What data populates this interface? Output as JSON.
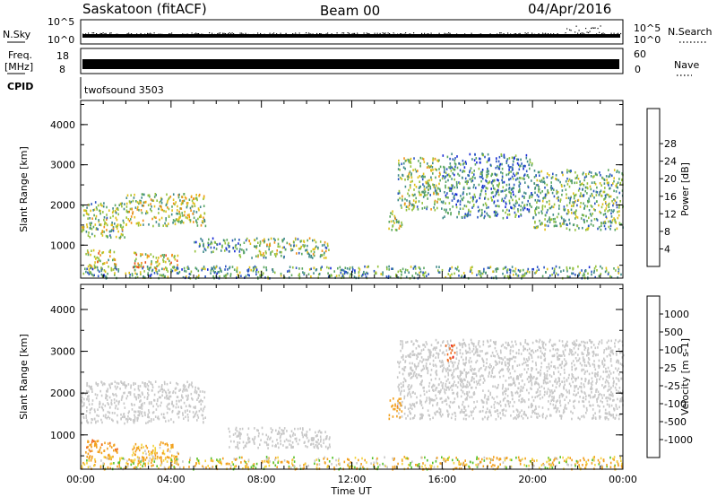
{
  "header": {
    "station": "Saskatoon (fitACF)",
    "beam": "Beam 00",
    "date": "04/Apr/2016"
  },
  "strip_panels": {
    "nsky_label": "N.Sky",
    "nsky_ticks_left": [
      "10^5",
      "10^0"
    ],
    "nsky_ticks_right": [
      "10^5",
      "10^0"
    ],
    "nsearch_label": "N.Search",
    "freq_label": "Freq.",
    "freq_unit": "[MHz]",
    "freq_ticks": [
      "18",
      "8"
    ],
    "nave_ticks": [
      "60",
      "0"
    ],
    "nave_label": "Nave",
    "cpid_label": "CPID",
    "cpid_value": "twofsound 3503"
  },
  "chart_data": [
    {
      "type": "heatmap",
      "panel": "power",
      "ylabel": "Slant Range [km]",
      "xlabel": "",
      "y_ticks": [
        "1000",
        "2000",
        "3000",
        "4000"
      ],
      "ylim": [
        180,
        4600
      ],
      "xlim_hours": [
        0,
        24
      ],
      "colorbar_label": "Power [dB]",
      "colorbar_ticks": [
        "4",
        "8",
        "12",
        "16",
        "20",
        "24",
        "28"
      ],
      "colorbar_colors": [
        "#1427d6",
        "#2a55c2",
        "#3f8a88",
        "#5aa65f",
        "#94c13c",
        "#e0c018",
        "#f28f14",
        "#e8501a",
        "#e0171a"
      ],
      "regions": [
        {
          "t0": 0.0,
          "t1": 2.0,
          "r0": 1200,
          "r1": 2100,
          "level": 0.45
        },
        {
          "t0": 2.0,
          "t1": 5.5,
          "r0": 1500,
          "r1": 2300,
          "level": 0.5
        },
        {
          "t0": 0.2,
          "t1": 1.6,
          "r0": 400,
          "r1": 900,
          "level": 0.55
        },
        {
          "t0": 2.2,
          "t1": 4.3,
          "r0": 400,
          "r1": 850,
          "level": 0.6
        },
        {
          "t0": 5.0,
          "t1": 7.0,
          "r0": 850,
          "r1": 1200,
          "level": 0.3
        },
        {
          "t0": 7.0,
          "t1": 11.0,
          "r0": 700,
          "r1": 1200,
          "level": 0.45
        },
        {
          "t0": 14.0,
          "t1": 16.0,
          "r0": 1900,
          "r1": 3200,
          "level": 0.45
        },
        {
          "t0": 13.6,
          "t1": 14.2,
          "r0": 1400,
          "r1": 1900,
          "level": 0.5
        },
        {
          "t0": 16.0,
          "t1": 20.0,
          "r0": 1700,
          "r1": 3300,
          "level": 0.3
        },
        {
          "t0": 20.0,
          "t1": 24.0,
          "r0": 1400,
          "r1": 2900,
          "level": 0.4
        },
        {
          "t0": 0.0,
          "t1": 24.0,
          "r0": 200,
          "r1": 500,
          "level": 0.35
        }
      ]
    },
    {
      "type": "heatmap",
      "panel": "velocity",
      "ylabel": "Slant Range [km]",
      "xlabel": "Time UT",
      "x_ticks": [
        "00:00",
        "04:00",
        "08:00",
        "12:00",
        "16:00",
        "20:00",
        "00:00"
      ],
      "y_ticks": [
        "1000",
        "2000",
        "3000",
        "4000"
      ],
      "ylim": [
        180,
        4600
      ],
      "xlim_hours": [
        0,
        24
      ],
      "colorbar_label": "Velocity [m s-1]",
      "colorbar_ticks": [
        "1000",
        "500",
        "100",
        "25",
        "-25",
        "-100",
        "-500",
        "-1000"
      ],
      "colorbar_colors": [
        "#1f3fd2",
        "#2a6fd0",
        "#2f8f4f",
        "#56c02a",
        "#c8c8c8",
        "#f2d23c",
        "#f2a01e",
        "#ef6a1e",
        "#e3161a"
      ],
      "regions": [
        {
          "t0": 0.0,
          "t1": 5.5,
          "r0": 1300,
          "r1": 2300,
          "velocity": 0
        },
        {
          "t0": 0.2,
          "t1": 1.6,
          "r0": 450,
          "r1": 900,
          "velocity": -400
        },
        {
          "t0": 2.2,
          "t1": 4.3,
          "r0": 400,
          "r1": 850,
          "velocity": -150
        },
        {
          "t0": 6.5,
          "t1": 11.0,
          "r0": 700,
          "r1": 1200,
          "velocity": 0
        },
        {
          "t0": 14.0,
          "t1": 24.0,
          "r0": 1400,
          "r1": 3300,
          "velocity": 0
        },
        {
          "t0": 13.6,
          "t1": 14.2,
          "r0": 1400,
          "r1": 1900,
          "velocity": -400
        },
        {
          "t0": 16.1,
          "t1": 16.6,
          "r0": 2800,
          "r1": 3200,
          "velocity": -900
        },
        {
          "t0": 0.0,
          "t1": 24.0,
          "r0": 200,
          "r1": 500,
          "velocity": -60
        }
      ]
    }
  ]
}
